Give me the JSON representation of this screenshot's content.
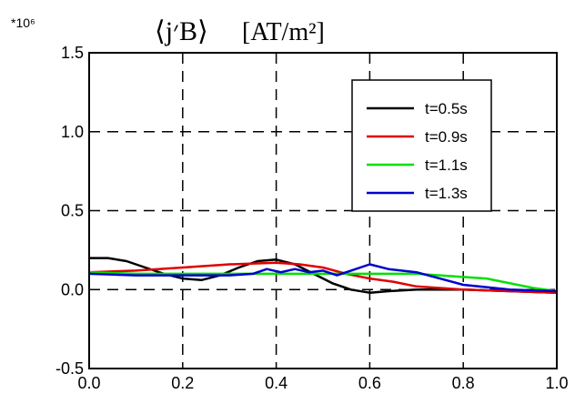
{
  "chart_data": {
    "type": "line",
    "title_main": "⟨j׳B⟩",
    "title_unit": "[AT/m²]",
    "y_multiplier": "*10⁶",
    "xlim": [
      0.0,
      1.0
    ],
    "ylim": [
      -0.5,
      1.5
    ],
    "x_ticks": [
      "0.0",
      "0.2",
      "0.4",
      "0.6",
      "0.8",
      "1.0"
    ],
    "y_ticks": [
      "-0.5",
      "0.0",
      "0.5",
      "1.0",
      "1.5"
    ],
    "x_tick_values": [
      0.0,
      0.2,
      0.4,
      0.6,
      0.8,
      1.0
    ],
    "y_tick_values": [
      -0.5,
      0.0,
      0.5,
      1.0,
      1.5
    ],
    "grid": true,
    "legend_position": "top-right",
    "series": [
      {
        "name": "t=0.5s",
        "color": "#000000",
        "x": [
          0.0,
          0.04,
          0.08,
          0.12,
          0.16,
          0.2,
          0.24,
          0.28,
          0.32,
          0.36,
          0.4,
          0.44,
          0.48,
          0.52,
          0.56,
          0.6,
          0.64,
          0.7,
          0.8,
          0.9,
          1.0
        ],
        "y": [
          0.2,
          0.2,
          0.18,
          0.14,
          0.1,
          0.07,
          0.06,
          0.09,
          0.14,
          0.18,
          0.19,
          0.16,
          0.1,
          0.04,
          0.0,
          -0.02,
          -0.01,
          0.0,
          0.0,
          -0.01,
          -0.02
        ]
      },
      {
        "name": "t=0.9s",
        "color": "#e00000",
        "x": [
          0.0,
          0.1,
          0.2,
          0.3,
          0.4,
          0.45,
          0.5,
          0.55,
          0.6,
          0.65,
          0.7,
          0.8,
          0.9,
          1.0
        ],
        "y": [
          0.11,
          0.12,
          0.14,
          0.16,
          0.17,
          0.16,
          0.14,
          0.1,
          0.07,
          0.05,
          0.02,
          0.0,
          -0.01,
          -0.02
        ]
      },
      {
        "name": "t=1.1s",
        "color": "#00e000",
        "x": [
          0.0,
          0.1,
          0.2,
          0.3,
          0.4,
          0.5,
          0.6,
          0.7,
          0.8,
          0.85,
          0.9,
          0.95,
          1.0
        ],
        "y": [
          0.11,
          0.1,
          0.1,
          0.1,
          0.1,
          0.1,
          0.1,
          0.1,
          0.08,
          0.07,
          0.04,
          0.01,
          -0.01
        ]
      },
      {
        "name": "t=1.3s",
        "color": "#0000d0",
        "x": [
          0.0,
          0.1,
          0.2,
          0.3,
          0.35,
          0.38,
          0.41,
          0.44,
          0.47,
          0.5,
          0.53,
          0.56,
          0.6,
          0.64,
          0.7,
          0.75,
          0.8,
          0.9,
          1.0
        ],
        "y": [
          0.1,
          0.09,
          0.09,
          0.09,
          0.1,
          0.13,
          0.11,
          0.13,
          0.11,
          0.12,
          0.09,
          0.12,
          0.16,
          0.13,
          0.11,
          0.07,
          0.03,
          0.0,
          -0.01
        ]
      }
    ]
  }
}
